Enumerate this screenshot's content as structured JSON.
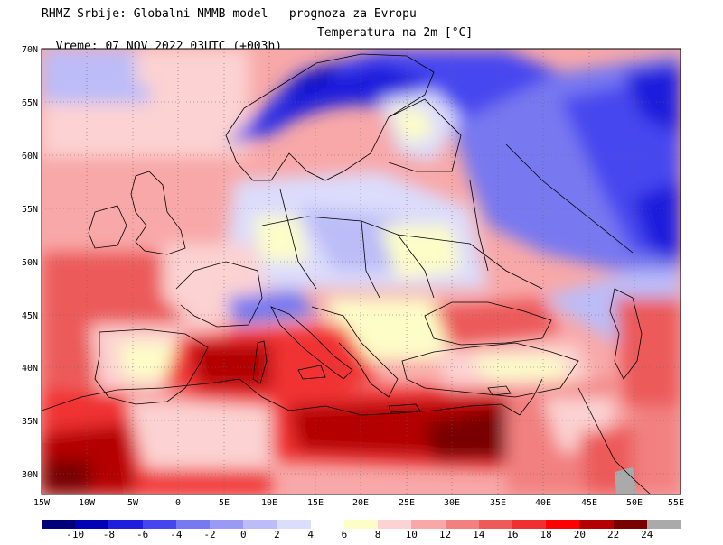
{
  "header": {
    "line1": "RHMZ Srbije: Globalni NMMB model – prognoza za Evropu",
    "line2_time": "Vreme: 07 NOV 2022 03UTC (+003h)",
    "line2_param": "Temperatura na 2m [°C]"
  },
  "map": {
    "lat_labels": [
      "70N",
      "65N",
      "60N",
      "55N",
      "50N",
      "45N",
      "40N",
      "35N",
      "30N"
    ],
    "lon_labels": [
      "15W",
      "10W",
      "5W",
      "0",
      "5E",
      "10E",
      "15E",
      "20E",
      "25E",
      "30E",
      "35E",
      "40E",
      "45E",
      "50E",
      "55E"
    ]
  },
  "legend": {
    "labels": [
      "-10",
      "-8",
      "-6",
      "-4",
      "-2",
      "0",
      "2",
      "4",
      "6",
      "8",
      "10",
      "12",
      "14",
      "16",
      "18",
      "20",
      "22",
      "24"
    ],
    "colors": [
      "#000078",
      "#0000b4",
      "#1e1edc",
      "#4646f0",
      "#7878f0",
      "#9a9af5",
      "#bcbcf8",
      "#dcdcfc",
      "#ffffff",
      "#fdfdc8",
      "#fcd2d2",
      "#f8a8a8",
      "#f28080",
      "#ec5a5a",
      "#f03030",
      "#ff0000",
      "#b40000",
      "#780000",
      "#aaaaaa"
    ]
  }
}
